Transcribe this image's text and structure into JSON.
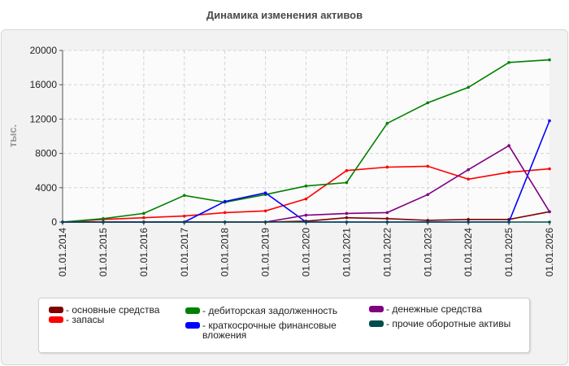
{
  "chart_data": {
    "type": "line",
    "title": "Динамика изменения активов",
    "ylabel": "тыс.",
    "xlabel": "",
    "ylim": [
      0,
      20000
    ],
    "yticks": [
      0,
      4000,
      8000,
      12000,
      16000,
      20000
    ],
    "grid": true,
    "legend_position": "bottom",
    "categories": [
      "01.01.2014",
      "01.01.2015",
      "01.01.2016",
      "01.01.2017",
      "01.01.2018",
      "01.01.2019",
      "01.01.2020",
      "01.01.2021",
      "01.01.2022",
      "01.01.2023",
      "01.01.2024",
      "01.01.2025",
      "01.01.2026"
    ],
    "series": [
      {
        "name": "- основные средства",
        "color": "#800000",
        "values": [
          0,
          0,
          0,
          0,
          0,
          0,
          100,
          500,
          400,
          200,
          300,
          300,
          1200
        ]
      },
      {
        "name": "- запасы",
        "color": "#ff0000",
        "values": [
          0,
          300,
          500,
          700,
          1100,
          1300,
          2700,
          6000,
          6400,
          6500,
          5000,
          5800,
          6200
        ]
      },
      {
        "name": "- дебиторская задолженность",
        "color": "#008000",
        "values": [
          0,
          400,
          1000,
          3100,
          2300,
          3200,
          4200,
          4600,
          11500,
          13900,
          15700,
          18600,
          18900
        ]
      },
      {
        "name": "- краткосрочные финансовые\nвложения",
        "color": "#0000ff",
        "values": [
          0,
          0,
          0,
          0,
          2400,
          3400,
          0,
          0,
          0,
          0,
          0,
          0,
          11800
        ]
      },
      {
        "name": "- денежные средства",
        "color": "#800080",
        "values": [
          0,
          0,
          0,
          0,
          0,
          0,
          800,
          1000,
          1100,
          3200,
          6100,
          8900,
          1200
        ]
      },
      {
        "name": "- прочие оборотные активы",
        "color": "#004d4d",
        "values": [
          0,
          0,
          0,
          0,
          0,
          0,
          0,
          0,
          0,
          0,
          0,
          0,
          0
        ]
      }
    ]
  }
}
